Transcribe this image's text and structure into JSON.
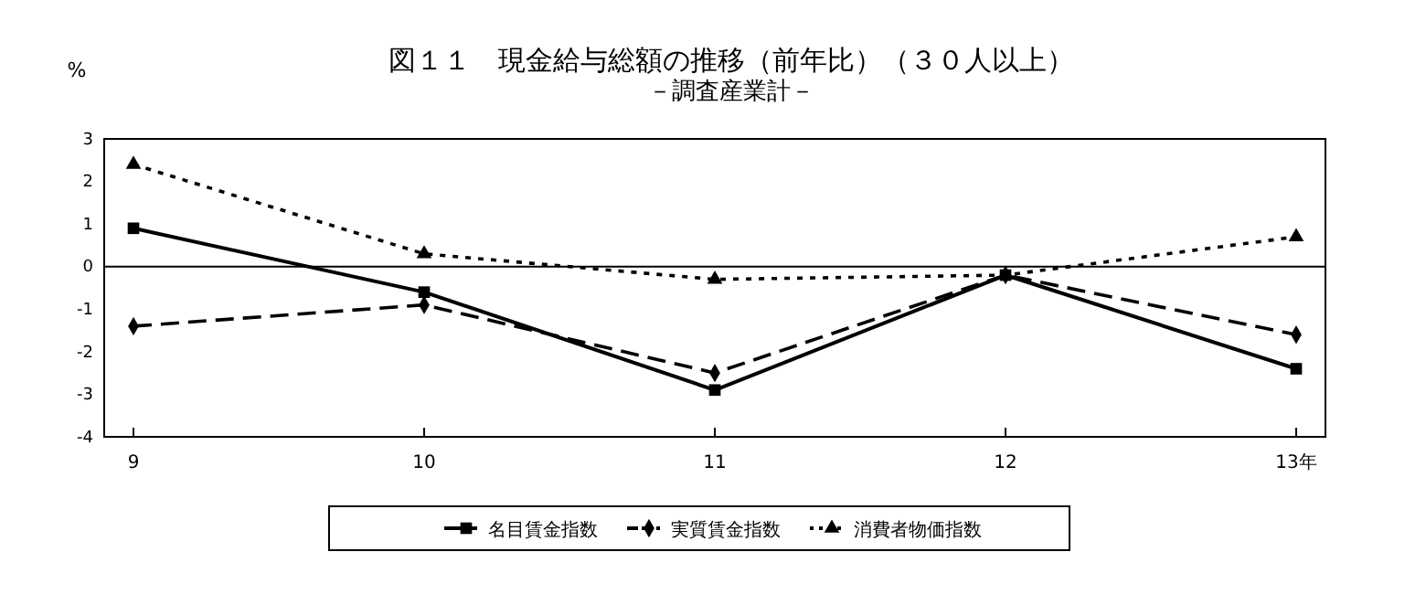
{
  "chart_data": {
    "type": "line",
    "title": "図１１　現金給与総額の推移（前年比）（３０人以上）",
    "subtitle": "－調査産業計－",
    "ylabel": "%",
    "categories": [
      "9",
      "10",
      "11",
      "12",
      "13年"
    ],
    "series": [
      {
        "name": "名目賃金指数",
        "color": "#000000",
        "values": [
          0.9,
          -0.6,
          -2.9,
          -0.2,
          -2.4
        ],
        "marker": "square",
        "line_style": "solid"
      },
      {
        "name": "実質賃金指数",
        "color": "#000000",
        "values": [
          -1.4,
          -0.9,
          -2.5,
          -0.2,
          -1.6
        ],
        "marker": "diamond",
        "line_style": "dashed"
      },
      {
        "name": "消費者物価指数",
        "color": "#000000",
        "values": [
          2.4,
          0.3,
          -0.3,
          -0.2,
          0.7
        ],
        "marker": "triangle",
        "line_style": "dotted"
      }
    ],
    "ylim": [
      -4,
      3
    ],
    "yticks": [
      -4,
      -3,
      -2,
      -1,
      0,
      1,
      2,
      3
    ],
    "grid": false,
    "legend": "bottom",
    "ref_lines": [
      {
        "axis": "y",
        "value": 0,
        "color": "#000000"
      }
    ]
  }
}
